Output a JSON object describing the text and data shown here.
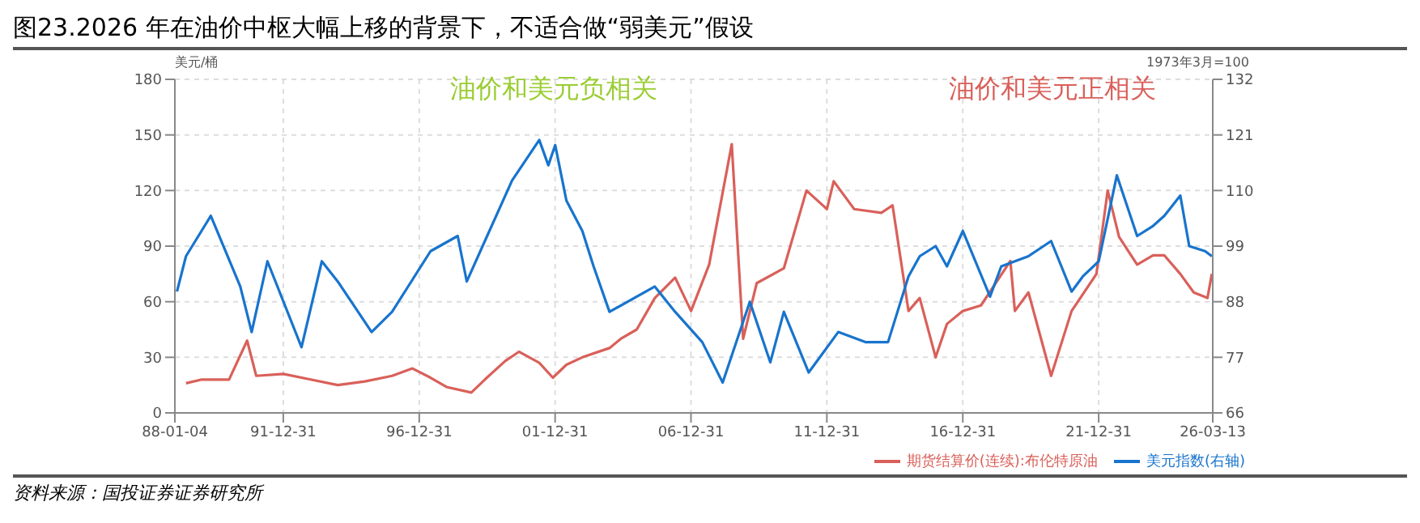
{
  "chart_data": {
    "type": "line",
    "title": "图23.2026 年在油价中枢大幅上移的背景下，不适合做“弱美元”假设",
    "ylabel": "美元/桶",
    "y2label": "1973年3月=100",
    "annotations": [
      "油价和美元负相关",
      "油价和美元正相关",
      "资料来源：国投证券证券研究所"
    ],
    "xlim": [
      "1988-01-04",
      "2026-03-13"
    ],
    "xticks": [
      {
        "value": "1988-01-04",
        "label": "88-01-04"
      },
      {
        "value": "1991-12-31",
        "label": "91-12-31"
      },
      {
        "value": "1996-12-31",
        "label": "96-12-31"
      },
      {
        "value": "2001-12-31",
        "label": "01-12-31"
      },
      {
        "value": "2006-12-31",
        "label": "06-12-31"
      },
      {
        "value": "2011-12-31",
        "label": "11-12-31"
      },
      {
        "value": "2016-12-31",
        "label": "16-12-31"
      },
      {
        "value": "2021-12-31",
        "label": "21-12-31"
      },
      {
        "value": "2026-03-13",
        "label": "26-03-13"
      }
    ],
    "ylim": [
      0,
      180
    ],
    "yticks": [
      0,
      30,
      60,
      90,
      120,
      150,
      180
    ],
    "y2lim": [
      66,
      132
    ],
    "y2ticks": [
      66,
      77,
      88,
      99,
      110,
      121,
      132
    ],
    "grid": true,
    "legend": "bottom right",
    "line_style": "solid",
    "marker": "none",
    "series": [
      {
        "name": "期货结算价(连续):布伦特原油",
        "color": "#d9605a",
        "x": [
          "1988-06",
          "1989-01",
          "1990-01",
          "1990-09",
          "1991-01",
          "1992-01",
          "1993-01",
          "1994-01",
          "1995-01",
          "1996-01",
          "1996-10",
          "1997-06",
          "1998-01",
          "1998-12",
          "1999-06",
          "2000-03",
          "2000-09",
          "2001-06",
          "2001-12",
          "2002-06",
          "2003-01",
          "2004-01",
          "2004-06",
          "2005-01",
          "2005-09",
          "2006-06",
          "2007-01",
          "2007-09",
          "2008-07",
          "2008-12",
          "2009-06",
          "2010-06",
          "2011-04",
          "2012-01",
          "2012-04",
          "2013-01",
          "2014-01",
          "2014-06",
          "2015-01",
          "2015-06",
          "2016-01",
          "2016-06",
          "2017-01",
          "2017-09",
          "2018-10",
          "2018-12",
          "2019-06",
          "2020-04",
          "2021-01",
          "2021-12",
          "2022-05",
          "2022-10",
          "2023-06",
          "2024-01",
          "2024-06",
          "2025-01",
          "2025-07",
          "2026-01",
          "2026-03"
        ],
        "values": [
          16,
          18,
          18,
          39,
          20,
          21,
          18,
          15,
          17,
          20,
          24,
          19,
          14,
          11,
          18,
          28,
          33,
          27,
          19,
          26,
          30,
          35,
          40,
          45,
          62,
          73,
          55,
          80,
          145,
          40,
          70,
          78,
          120,
          110,
          125,
          110,
          108,
          112,
          55,
          62,
          30,
          48,
          55,
          58,
          82,
          55,
          65,
          20,
          55,
          75,
          120,
          95,
          80,
          85,
          85,
          75,
          65,
          62,
          75
        ]
      },
      {
        "name": "美元指数(右轴)",
        "color": "#1874cd",
        "axis": "y2",
        "x": [
          "1988-02",
          "1988-06",
          "1989-05",
          "1990-06",
          "1990-11",
          "1991-06",
          "1992-09",
          "1993-06",
          "1994-01",
          "1995-04",
          "1996-01",
          "1997-06",
          "1998-06",
          "1998-10",
          "1999-06",
          "2000-06",
          "2001-06",
          "2001-10",
          "2002-01",
          "2002-06",
          "2003-01",
          "2003-06",
          "2004-01",
          "2005-09",
          "2006-06",
          "2007-06",
          "2008-03",
          "2009-03",
          "2009-12",
          "2010-06",
          "2011-05",
          "2012-06",
          "2013-06",
          "2014-04",
          "2015-01",
          "2015-06",
          "2016-01",
          "2016-06",
          "2017-01",
          "2018-01",
          "2018-06",
          "2019-06",
          "2020-04",
          "2021-01",
          "2021-06",
          "2022-01",
          "2022-09",
          "2023-06",
          "2024-01",
          "2024-06",
          "2025-01",
          "2025-05",
          "2025-12",
          "2026-03"
        ],
        "values": [
          90,
          97,
          105,
          91,
          82,
          96,
          79,
          96,
          92,
          82,
          86,
          98,
          101,
          92,
          100,
          112,
          120,
          115,
          119,
          108,
          102,
          95,
          86,
          91,
          86,
          80,
          72,
          88,
          76,
          86,
          74,
          82,
          80,
          80,
          93,
          97,
          99,
          95,
          102,
          89,
          95,
          97,
          100,
          90,
          93,
          96,
          113,
          101,
          103,
          105,
          109,
          99,
          98,
          97
        ]
      }
    ]
  }
}
